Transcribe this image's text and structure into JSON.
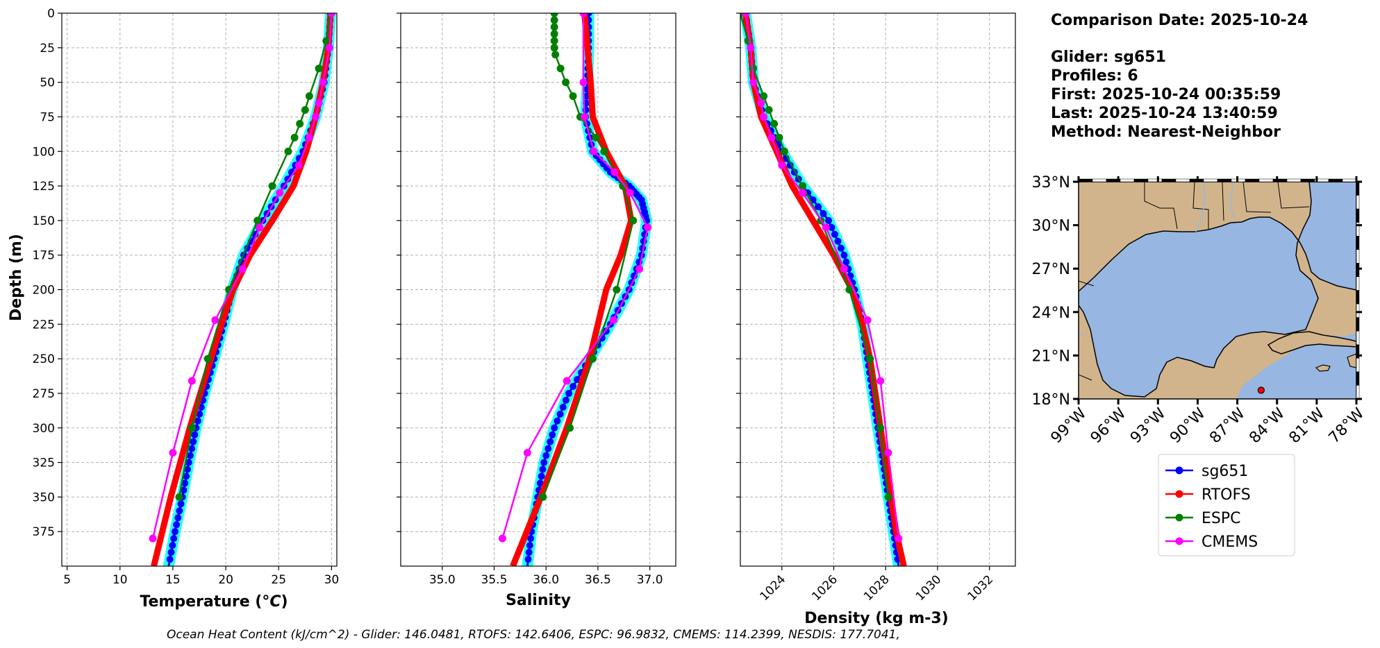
{
  "chart_data": [
    {
      "type": "line",
      "xlabel": "Temperature (°C)",
      "ylabel": "Depth (m)",
      "xlim": [
        4.5,
        30.5
      ],
      "ylim": [
        400,
        0
      ],
      "x_ticks": [
        5,
        10,
        15,
        20,
        25,
        30
      ],
      "y_ticks": [
        0,
        25,
        50,
        75,
        100,
        125,
        150,
        175,
        200,
        225,
        250,
        275,
        300,
        325,
        350,
        375
      ],
      "grid": true,
      "series": [
        {
          "name": "sg651",
          "color": "#0000ff",
          "depth": [
            0,
            25,
            50,
            75,
            100,
            125,
            150,
            175,
            200,
            225,
            250,
            275,
            300,
            325,
            350,
            375,
            400
          ],
          "values": [
            29.9,
            29.7,
            29.3,
            28.5,
            27.3,
            25.5,
            23.5,
            21.7,
            20.6,
            19.8,
            18.9,
            18.0,
            17.2,
            16.5,
            15.9,
            15.2,
            14.6
          ]
        },
        {
          "name": "RTOFS",
          "color": "#ff0000",
          "depth": [
            0,
            25,
            50,
            75,
            100,
            125,
            150,
            175,
            200,
            225,
            250,
            275,
            300,
            325,
            350,
            375,
            400
          ],
          "values": [
            29.9,
            29.7,
            29.2,
            28.5,
            27.6,
            26.4,
            24.4,
            22.3,
            20.7,
            19.6,
            18.6,
            17.6,
            16.6,
            15.7,
            14.8,
            14.0,
            13.2
          ]
        },
        {
          "name": "ESPC",
          "color": "#008000",
          "depth": [
            0,
            20,
            40,
            60,
            70,
            80,
            90,
            100,
            125,
            150,
            200,
            250,
            300,
            350
          ],
          "values": [
            29.9,
            29.5,
            28.8,
            27.9,
            27.5,
            27.0,
            26.5,
            25.9,
            24.4,
            23.0,
            20.3,
            18.3,
            16.8,
            15.6
          ]
        },
        {
          "name": "CMEMS",
          "color": "#ff00ff",
          "depth": [
            0,
            25,
            50,
            65,
            75,
            90,
            110,
            130,
            155,
            185,
            222,
            266,
            318,
            380
          ],
          "values": [
            30.0,
            29.8,
            29.2,
            28.8,
            28.5,
            27.9,
            26.9,
            25.1,
            23.2,
            21.6,
            19.0,
            16.8,
            15.0,
            13.1
          ]
        }
      ]
    },
    {
      "type": "line",
      "xlabel": "Salinity",
      "ylabel": "",
      "xlim": [
        34.6,
        37.25
      ],
      "ylim": [
        400,
        0
      ],
      "x_ticks": [
        35.0,
        35.5,
        36.0,
        36.5,
        37.0
      ],
      "y_ticks": [
        0,
        25,
        50,
        75,
        100,
        125,
        150,
        175,
        200,
        225,
        250,
        275,
        300,
        325,
        350,
        375
      ],
      "grid": true,
      "series": [
        {
          "name": "sg651",
          "color": "#0000ff",
          "depth": [
            0,
            25,
            50,
            75,
            100,
            115,
            125,
            135,
            150,
            175,
            200,
            225,
            250,
            275,
            300,
            325,
            350,
            375,
            400
          ],
          "values": [
            36.41,
            36.41,
            36.4,
            36.38,
            36.45,
            36.62,
            36.8,
            36.92,
            36.97,
            36.92,
            36.8,
            36.62,
            36.42,
            36.22,
            36.08,
            35.98,
            35.92,
            35.86,
            35.82
          ]
        },
        {
          "name": "RTOFS",
          "color": "#ff0000",
          "depth": [
            0,
            50,
            75,
            100,
            125,
            150,
            175,
            200,
            250,
            300,
            350,
            400
          ],
          "values": [
            36.37,
            36.43,
            36.45,
            36.58,
            36.76,
            36.82,
            36.72,
            36.58,
            36.42,
            36.2,
            35.95,
            35.68
          ]
        },
        {
          "name": "ESPC",
          "color": "#008000",
          "depth": [
            0,
            5,
            10,
            15,
            20,
            25,
            30,
            40,
            50,
            60,
            75,
            90,
            100,
            125,
            150,
            200,
            250,
            300,
            350
          ],
          "values": [
            36.08,
            36.08,
            36.08,
            36.08,
            36.08,
            36.08,
            36.09,
            36.14,
            36.19,
            36.26,
            36.33,
            36.48,
            36.56,
            36.74,
            36.84,
            36.68,
            36.45,
            36.23,
            35.97
          ]
        },
        {
          "name": "CMEMS",
          "color": "#ff00ff",
          "depth": [
            0,
            50,
            75,
            100,
            115,
            130,
            155,
            185,
            222,
            266,
            318,
            380
          ],
          "values": [
            36.36,
            36.36,
            36.37,
            36.46,
            36.66,
            36.81,
            36.98,
            36.9,
            36.65,
            36.2,
            35.82,
            35.58
          ]
        }
      ]
    },
    {
      "type": "line",
      "xlabel": "Density (kg m-3)",
      "ylabel": "",
      "xlim": [
        1022.4,
        1033.0
      ],
      "ylim": [
        400,
        0
      ],
      "x_ticks": [
        1024,
        1026,
        1028,
        1030,
        1032
      ],
      "y_ticks": [
        0,
        25,
        50,
        75,
        100,
        125,
        150,
        175,
        200,
        225,
        250,
        275,
        300,
        325,
        350,
        375
      ],
      "grid": true,
      "series": [
        {
          "name": "sg651",
          "color": "#0000ff",
          "depth": [
            0,
            25,
            50,
            75,
            100,
            125,
            150,
            175,
            200,
            225,
            250,
            275,
            300,
            325,
            350,
            375,
            400
          ],
          "values": [
            1022.6,
            1022.8,
            1022.9,
            1023.3,
            1024.0,
            1024.8,
            1025.8,
            1026.4,
            1026.8,
            1027.1,
            1027.3,
            1027.5,
            1027.7,
            1027.9,
            1028.1,
            1028.3,
            1028.5
          ]
        },
        {
          "name": "RTOFS",
          "color": "#ff0000",
          "depth": [
            0,
            25,
            50,
            75,
            100,
            125,
            150,
            175,
            200,
            225,
            250,
            275,
            300,
            325,
            350,
            375,
            400
          ],
          "values": [
            1022.6,
            1022.8,
            1022.9,
            1023.2,
            1023.8,
            1024.4,
            1025.2,
            1026.0,
            1026.7,
            1027.1,
            1027.4,
            1027.6,
            1027.8,
            1028.0,
            1028.2,
            1028.4,
            1028.7
          ]
        },
        {
          "name": "ESPC",
          "color": "#008000",
          "depth": [
            0,
            20,
            40,
            60,
            70,
            80,
            90,
            100,
            125,
            150,
            200,
            250,
            300,
            350
          ],
          "values": [
            1022.4,
            1022.7,
            1022.9,
            1023.3,
            1023.5,
            1023.7,
            1023.9,
            1024.1,
            1024.8,
            1025.5,
            1026.6,
            1027.4,
            1027.8,
            1028.1
          ]
        },
        {
          "name": "CMEMS",
          "color": "#ff00ff",
          "depth": [
            0,
            25,
            50,
            65,
            75,
            90,
            110,
            130,
            155,
            185,
            222,
            266,
            318,
            380
          ],
          "values": [
            1022.6,
            1022.8,
            1022.9,
            1023.2,
            1023.3,
            1023.6,
            1024.0,
            1024.8,
            1025.7,
            1026.4,
            1027.3,
            1027.8,
            1028.1,
            1028.5
          ]
        }
      ]
    }
  ],
  "info": {
    "comparison_date": "Comparison Date: 2025-10-24",
    "glider": "Glider: sg651",
    "profiles": "Profiles: 6",
    "first": "First: 2025-10-24 00:35:59",
    "last": "Last: 2025-10-24 13:40:59",
    "method": "Method: Nearest-Neighbor"
  },
  "map": {
    "lat_ticks": [
      "33°N",
      "30°N",
      "27°N",
      "24°N",
      "21°N",
      "18°N"
    ],
    "lon_ticks": [
      "99°W",
      "96°W",
      "93°W",
      "90°W",
      "87°W",
      "84°W",
      "81°W",
      "78°W"
    ],
    "lat_range": [
      18,
      33
    ],
    "lon_range": [
      -99,
      -78
    ],
    "glider_position": {
      "lon": -85.2,
      "lat": 18.6
    },
    "land_color": "#d2b48c",
    "ocean_color": "#97b6e1"
  },
  "legend": [
    {
      "label": "sg651",
      "color": "#0000ff"
    },
    {
      "label": "RTOFS",
      "color": "#ff0000"
    },
    {
      "label": "ESPC",
      "color": "#008000"
    },
    {
      "label": "CMEMS",
      "color": "#ff00ff"
    }
  ],
  "ohc_text": "Ocean Heat Content (kJ/cm^2) - Glider: 146.0481,  RTOFS: 142.6406,  ESPC: 96.9832,  CMEMS: 114.2399,  NESDIS: 177.7041,"
}
